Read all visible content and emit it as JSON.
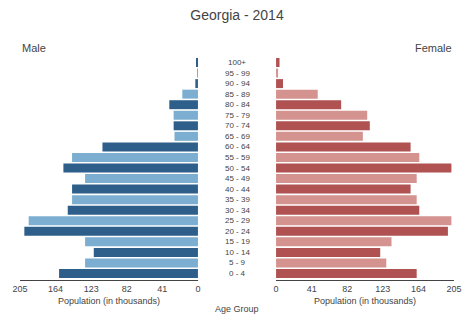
{
  "chart_data": {
    "type": "bar",
    "orientation": "horizontal",
    "title": "Georgia - 2014",
    "categories": [
      "100+",
      "95 - 99",
      "90 - 94",
      "85 - 89",
      "80 - 84",
      "75 - 79",
      "70 - 74",
      "65 - 69",
      "60 - 64",
      "55 - 59",
      "50 - 54",
      "45 - 49",
      "40 - 44",
      "35 - 39",
      "30 - 34",
      "25 - 29",
      "20 - 24",
      "15 - 19",
      "10 - 14",
      "5 - 9",
      "0 - 4"
    ],
    "series": [
      {
        "name": "Male",
        "colors": [
          "#2e5f8a",
          "#7baed0",
          "#2e5f8a",
          "#7baed0",
          "#2e5f8a",
          "#7baed0",
          "#2e5f8a",
          "#7baed0",
          "#2e5f8a",
          "#7baed0",
          "#2e5f8a",
          "#7baed0",
          "#2e5f8a",
          "#7baed0",
          "#2e5f8a",
          "#7baed0",
          "#2e5f8a",
          "#7baed0",
          "#2e5f8a",
          "#7baed0",
          "#2e5f8a"
        ],
        "values": [
          2,
          1,
          3,
          18,
          33,
          28,
          28,
          27,
          110,
          145,
          155,
          130,
          145,
          145,
          150,
          195,
          200,
          130,
          120,
          130,
          160
        ]
      },
      {
        "name": "Female",
        "colors": [
          "#b05252",
          "#d4938f",
          "#b05252",
          "#d4938f",
          "#b05252",
          "#d4938f",
          "#b05252",
          "#d4938f",
          "#b05252",
          "#d4938f",
          "#b05252",
          "#d4938f",
          "#b05252",
          "#d4938f",
          "#b05252",
          "#d4938f",
          "#b05252",
          "#d4938f",
          "#b05252",
          "#d4938f",
          "#b05252"
        ],
        "values": [
          4,
          2,
          8,
          48,
          75,
          105,
          108,
          100,
          155,
          165,
          202,
          162,
          155,
          162,
          165,
          202,
          198,
          133,
          120,
          127,
          162
        ]
      }
    ],
    "xlabel": "Population (in thousands)",
    "ylabel": "Age Group",
    "xlim": [
      0,
      205
    ],
    "xticks": [
      0,
      41,
      82,
      123,
      164,
      205
    ],
    "grid": false
  }
}
